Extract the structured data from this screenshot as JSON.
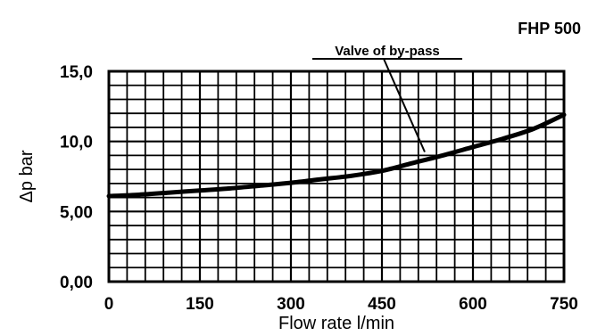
{
  "chart_data": {
    "type": "line",
    "title": "FHP 500",
    "xlabel": "Flow rate l/min",
    "ylabel": "Δp bar",
    "xlim": [
      0,
      750
    ],
    "ylim": [
      0,
      15
    ],
    "grid": true,
    "x_ticks": [
      {
        "value": 0,
        "label": "0"
      },
      {
        "value": 150,
        "label": "150"
      },
      {
        "value": 300,
        "label": "300"
      },
      {
        "value": 450,
        "label": "450"
      },
      {
        "value": 600,
        "label": "600"
      },
      {
        "value": 750,
        "label": "750"
      }
    ],
    "y_ticks": [
      {
        "value": 0,
        "label": "0,00"
      },
      {
        "value": 5,
        "label": "5,00"
      },
      {
        "value": 10,
        "label": "10,0"
      },
      {
        "value": 15,
        "label": "15,0"
      }
    ],
    "series": [
      {
        "x": [
          0,
          50,
          100,
          150,
          200,
          250,
          300,
          350,
          400,
          450,
          500,
          550,
          600,
          650,
          700,
          750
        ],
        "y": [
          6.1,
          6.2,
          6.35,
          6.5,
          6.65,
          6.85,
          7.05,
          7.3,
          7.55,
          7.9,
          8.45,
          9.0,
          9.6,
          10.2,
          10.9,
          11.9
        ],
        "color": "#000000"
      }
    ],
    "annotations": [
      {
        "text": "Valve of by-pass",
        "point": {
          "x": 525,
          "y": 9.5
        }
      }
    ]
  }
}
